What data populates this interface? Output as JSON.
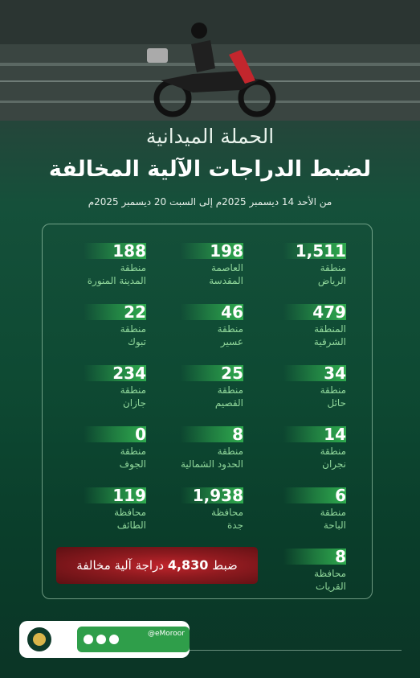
{
  "header": {
    "title": "الحملة الميدانية",
    "subtitle": "لضبط الدراجات الآلية المخالفة",
    "date_range": "من الأحد 14 ديسمبر 2025م إلى السبت 20 ديسمبر 2025م"
  },
  "regions": [
    {
      "value": "1,511",
      "line1": "منطقة",
      "line2": "الرياض"
    },
    {
      "value": "198",
      "line1": "العاصمة",
      "line2": "المقدسة"
    },
    {
      "value": "188",
      "line1": "منطقة",
      "line2": "المدينة المنورة"
    },
    {
      "value": "479",
      "line1": "المنطقة",
      "line2": "الشرقية"
    },
    {
      "value": "46",
      "line1": "منطقة",
      "line2": "عسير"
    },
    {
      "value": "22",
      "line1": "منطقة",
      "line2": "تبوك"
    },
    {
      "value": "34",
      "line1": "منطقة",
      "line2": "حائل"
    },
    {
      "value": "25",
      "line1": "منطقة",
      "line2": "القصيم"
    },
    {
      "value": "234",
      "line1": "منطقة",
      "line2": "جازان"
    },
    {
      "value": "14",
      "line1": "منطقة",
      "line2": "نجران"
    },
    {
      "value": "8",
      "line1": "منطقة",
      "line2": "الحدود الشمالية"
    },
    {
      "value": "0",
      "line1": "منطقة",
      "line2": "الجوف"
    },
    {
      "value": "6",
      "line1": "منطقة",
      "line2": "الباحة"
    },
    {
      "value": "1,938",
      "line1": "محافظة",
      "line2": "جدة"
    },
    {
      "value": "119",
      "line1": "محافظة",
      "line2": "الطائف"
    },
    {
      "value": "8",
      "line1": "محافظة",
      "line2": "القريات"
    }
  ],
  "total": {
    "prefix": "ضبط",
    "value": "4,830",
    "suffix": "دراجة آلية مخالفة"
  },
  "footer": {
    "handle": "@eMoroor"
  }
}
